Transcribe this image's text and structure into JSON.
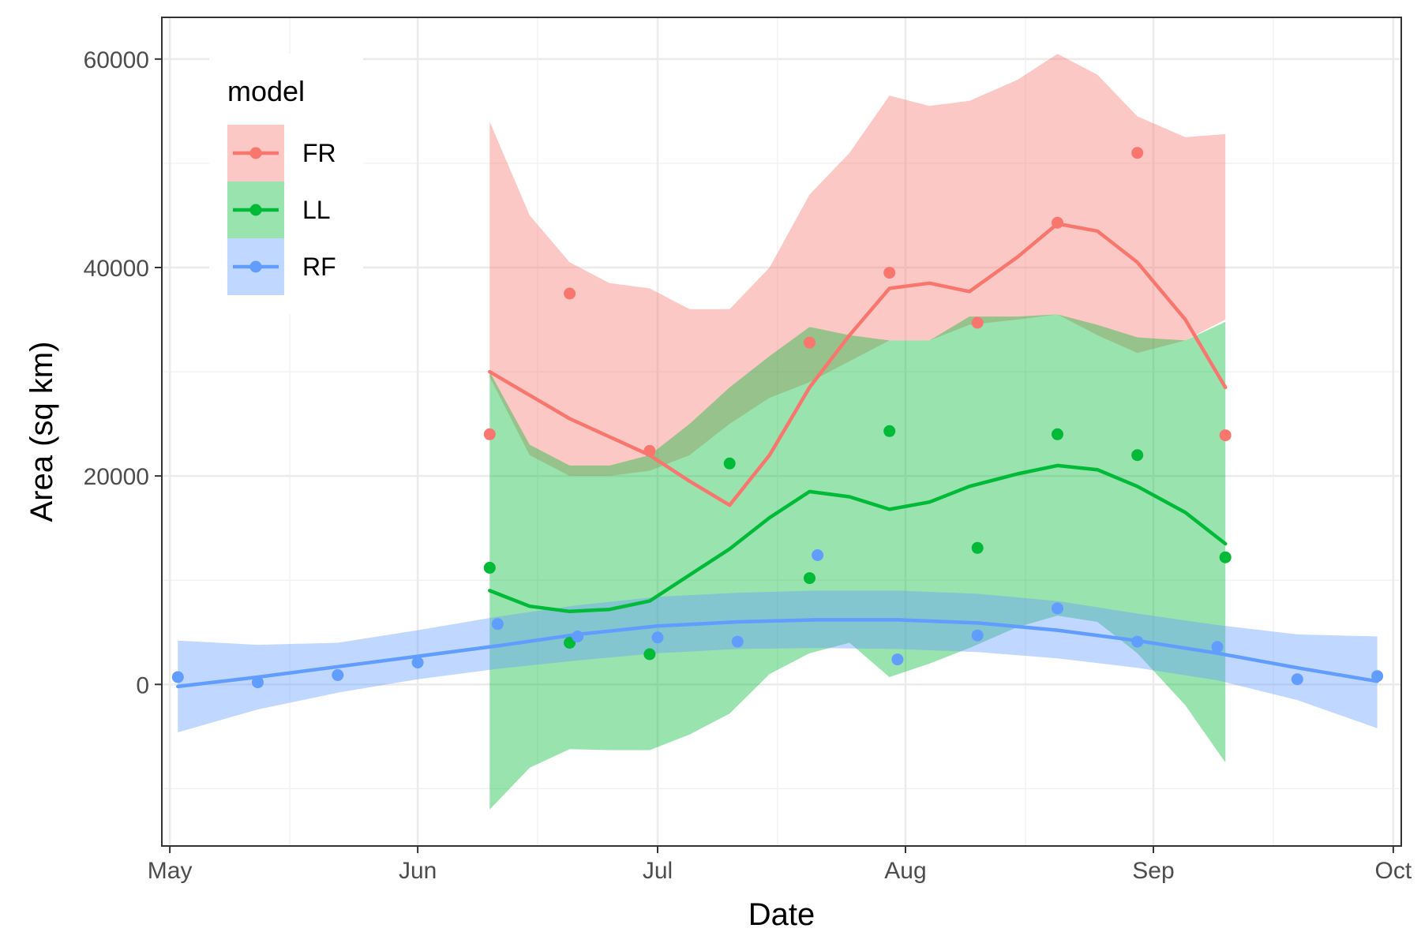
{
  "chart_data": {
    "type": "line",
    "xlabel": "Date",
    "ylabel": "Area (sq km)",
    "x_axis_type": "date",
    "xlim": [
      "2018-04-30",
      "2018-10-02"
    ],
    "ylim": [
      -15500,
      64000
    ],
    "x_ticks": [
      {
        "date": "2018-05-01",
        "label": "May"
      },
      {
        "date": "2018-06-01",
        "label": "Jun"
      },
      {
        "date": "2018-07-01",
        "label": "Jul"
      },
      {
        "date": "2018-08-01",
        "label": "Aug"
      },
      {
        "date": "2018-09-01",
        "label": "Sep"
      },
      {
        "date": "2018-10-01",
        "label": "Oct"
      }
    ],
    "x_minor_ticks": [
      "2018-05-16",
      "2018-06-16",
      "2018-07-16",
      "2018-08-16",
      "2018-09-16"
    ],
    "y_ticks": [
      0,
      20000,
      40000,
      60000
    ],
    "y_minor_ticks": [
      -10000,
      10000,
      30000,
      50000
    ],
    "grid": true,
    "legend": {
      "title": "model",
      "position": "top-left inside"
    },
    "series": [
      {
        "name": "FR",
        "color": "#F8766D",
        "points": [
          [
            "2018-06-10",
            24000
          ],
          [
            "2018-06-20",
            37500
          ],
          [
            "2018-06-30",
            22400
          ],
          [
            "2018-07-20",
            32800
          ],
          [
            "2018-07-30",
            39500
          ],
          [
            "2018-08-10",
            34700
          ],
          [
            "2018-08-20",
            44300
          ],
          [
            "2018-08-30",
            51000
          ],
          [
            "2018-09-10",
            23900
          ]
        ],
        "smooth": [
          [
            "2018-06-10",
            30000
          ],
          [
            "2018-06-20",
            25500
          ],
          [
            "2018-06-30",
            22000
          ],
          [
            "2018-07-05",
            19500
          ],
          [
            "2018-07-10",
            17200
          ],
          [
            "2018-07-15",
            22000
          ],
          [
            "2018-07-20",
            28500
          ],
          [
            "2018-07-25",
            33500
          ],
          [
            "2018-07-30",
            38000
          ],
          [
            "2018-08-04",
            38500
          ],
          [
            "2018-08-09",
            37700
          ],
          [
            "2018-08-15",
            41000
          ],
          [
            "2018-08-20",
            44200
          ],
          [
            "2018-08-25",
            43500
          ],
          [
            "2018-08-30",
            40500
          ],
          [
            "2018-09-05",
            35000
          ],
          [
            "2018-09-10",
            28500
          ]
        ],
        "ribbon_upper": [
          [
            "2018-06-10",
            54000
          ],
          [
            "2018-06-15",
            45000
          ],
          [
            "2018-06-20",
            40500
          ],
          [
            "2018-06-25",
            38500
          ],
          [
            "2018-06-30",
            38000
          ],
          [
            "2018-07-05",
            36000
          ],
          [
            "2018-07-10",
            36000
          ],
          [
            "2018-07-15",
            40000
          ],
          [
            "2018-07-20",
            47000
          ],
          [
            "2018-07-25",
            51000
          ],
          [
            "2018-07-30",
            56500
          ],
          [
            "2018-08-04",
            55500
          ],
          [
            "2018-08-09",
            56000
          ],
          [
            "2018-08-15",
            58000
          ],
          [
            "2018-08-20",
            60500
          ],
          [
            "2018-08-25",
            58500
          ],
          [
            "2018-08-30",
            54500
          ],
          [
            "2018-09-05",
            52500
          ],
          [
            "2018-09-10",
            52800
          ]
        ],
        "ribbon_lower": [
          [
            "2018-06-10",
            29500
          ],
          [
            "2018-06-15",
            22000
          ],
          [
            "2018-06-20",
            20000
          ],
          [
            "2018-06-25",
            20000
          ],
          [
            "2018-06-30",
            20500
          ],
          [
            "2018-07-05",
            22000
          ],
          [
            "2018-07-10",
            25000
          ],
          [
            "2018-07-15",
            27500
          ],
          [
            "2018-07-20",
            29000
          ],
          [
            "2018-07-25",
            31000
          ],
          [
            "2018-07-30",
            33000
          ],
          [
            "2018-08-04",
            33000
          ],
          [
            "2018-08-09",
            34500
          ],
          [
            "2018-08-15",
            35000
          ],
          [
            "2018-08-20",
            35500
          ],
          [
            "2018-08-25",
            33500
          ],
          [
            "2018-08-30",
            31800
          ],
          [
            "2018-09-05",
            33000
          ],
          [
            "2018-09-10",
            35000
          ]
        ]
      },
      {
        "name": "LL",
        "color": "#00BA38",
        "points": [
          [
            "2018-06-10",
            11200
          ],
          [
            "2018-06-20",
            4000
          ],
          [
            "2018-06-30",
            2900
          ],
          [
            "2018-07-10",
            21200
          ],
          [
            "2018-07-20",
            10200
          ],
          [
            "2018-07-30",
            24300
          ],
          [
            "2018-08-10",
            13100
          ],
          [
            "2018-08-20",
            24000
          ],
          [
            "2018-08-30",
            22000
          ],
          [
            "2018-09-10",
            12200
          ]
        ],
        "smooth": [
          [
            "2018-06-10",
            9000
          ],
          [
            "2018-06-15",
            7500
          ],
          [
            "2018-06-20",
            7000
          ],
          [
            "2018-06-25",
            7200
          ],
          [
            "2018-06-30",
            8000
          ],
          [
            "2018-07-05",
            10500
          ],
          [
            "2018-07-10",
            13000
          ],
          [
            "2018-07-15",
            16000
          ],
          [
            "2018-07-20",
            18500
          ],
          [
            "2018-07-25",
            18000
          ],
          [
            "2018-07-30",
            16800
          ],
          [
            "2018-08-04",
            17500
          ],
          [
            "2018-08-09",
            19000
          ],
          [
            "2018-08-15",
            20200
          ],
          [
            "2018-08-20",
            21000
          ],
          [
            "2018-08-25",
            20600
          ],
          [
            "2018-08-30",
            19000
          ],
          [
            "2018-09-05",
            16500
          ],
          [
            "2018-09-10",
            13500
          ]
        ],
        "ribbon_upper": [
          [
            "2018-06-10",
            30000
          ],
          [
            "2018-06-15",
            23000
          ],
          [
            "2018-06-20",
            21000
          ],
          [
            "2018-06-25",
            21000
          ],
          [
            "2018-06-30",
            22000
          ],
          [
            "2018-07-05",
            25000
          ],
          [
            "2018-07-10",
            28500
          ],
          [
            "2018-07-15",
            31500
          ],
          [
            "2018-07-20",
            34300
          ],
          [
            "2018-07-25",
            33500
          ],
          [
            "2018-07-30",
            33000
          ],
          [
            "2018-08-04",
            33000
          ],
          [
            "2018-08-09",
            35300
          ],
          [
            "2018-08-15",
            35300
          ],
          [
            "2018-08-20",
            35500
          ],
          [
            "2018-08-25",
            34500
          ],
          [
            "2018-08-30",
            33300
          ],
          [
            "2018-09-05",
            33000
          ],
          [
            "2018-09-10",
            34800
          ]
        ],
        "ribbon_lower": [
          [
            "2018-06-10",
            -12000
          ],
          [
            "2018-06-15",
            -8000
          ],
          [
            "2018-06-20",
            -6200
          ],
          [
            "2018-06-25",
            -6300
          ],
          [
            "2018-06-30",
            -6300
          ],
          [
            "2018-07-05",
            -4800
          ],
          [
            "2018-07-10",
            -2800
          ],
          [
            "2018-07-15",
            1000
          ],
          [
            "2018-07-20",
            3000
          ],
          [
            "2018-07-25",
            4000
          ],
          [
            "2018-07-30",
            700
          ],
          [
            "2018-08-04",
            2000
          ],
          [
            "2018-08-09",
            3500
          ],
          [
            "2018-08-15",
            5500
          ],
          [
            "2018-08-20",
            6600
          ],
          [
            "2018-08-25",
            6000
          ],
          [
            "2018-08-30",
            3000
          ],
          [
            "2018-09-05",
            -2000
          ],
          [
            "2018-09-10",
            -7500
          ]
        ]
      },
      {
        "name": "RF",
        "color": "#619CFF",
        "points": [
          [
            "2018-05-02",
            700
          ],
          [
            "2018-05-12",
            200
          ],
          [
            "2018-05-22",
            900
          ],
          [
            "2018-06-01",
            2100
          ],
          [
            "2018-06-11",
            5800
          ],
          [
            "2018-06-21",
            4600
          ],
          [
            "2018-07-01",
            4500
          ],
          [
            "2018-07-11",
            4100
          ],
          [
            "2018-07-21",
            12400
          ],
          [
            "2018-07-31",
            2400
          ],
          [
            "2018-08-10",
            4700
          ],
          [
            "2018-08-20",
            7300
          ],
          [
            "2018-08-30",
            4100
          ],
          [
            "2018-09-09",
            3600
          ],
          [
            "2018-09-19",
            500
          ],
          [
            "2018-09-29",
            800
          ]
        ],
        "smooth": [
          [
            "2018-05-02",
            -200
          ],
          [
            "2018-05-12",
            700
          ],
          [
            "2018-05-22",
            1700
          ],
          [
            "2018-06-01",
            2700
          ],
          [
            "2018-06-11",
            3700
          ],
          [
            "2018-06-21",
            4800
          ],
          [
            "2018-07-01",
            5600
          ],
          [
            "2018-07-11",
            6000
          ],
          [
            "2018-07-21",
            6200
          ],
          [
            "2018-07-31",
            6200
          ],
          [
            "2018-08-10",
            5900
          ],
          [
            "2018-08-20",
            5200
          ],
          [
            "2018-08-30",
            4200
          ],
          [
            "2018-09-09",
            3000
          ],
          [
            "2018-09-19",
            1600
          ],
          [
            "2018-09-29",
            300
          ]
        ],
        "ribbon_upper": [
          [
            "2018-05-02",
            4200
          ],
          [
            "2018-05-12",
            3800
          ],
          [
            "2018-05-22",
            4000
          ],
          [
            "2018-06-01",
            5200
          ],
          [
            "2018-06-11",
            6500
          ],
          [
            "2018-06-21",
            7600
          ],
          [
            "2018-07-01",
            8400
          ],
          [
            "2018-07-11",
            8800
          ],
          [
            "2018-07-21",
            9000
          ],
          [
            "2018-07-31",
            9000
          ],
          [
            "2018-08-10",
            8700
          ],
          [
            "2018-08-20",
            8000
          ],
          [
            "2018-08-30",
            6800
          ],
          [
            "2018-09-09",
            5700
          ],
          [
            "2018-09-19",
            4800
          ],
          [
            "2018-09-29",
            4600
          ]
        ],
        "ribbon_lower": [
          [
            "2018-05-02",
            -4600
          ],
          [
            "2018-05-12",
            -2400
          ],
          [
            "2018-05-22",
            -800
          ],
          [
            "2018-06-01",
            500
          ],
          [
            "2018-06-11",
            1500
          ],
          [
            "2018-06-21",
            2300
          ],
          [
            "2018-07-01",
            3000
          ],
          [
            "2018-07-11",
            3400
          ],
          [
            "2018-07-21",
            3500
          ],
          [
            "2018-07-31",
            3400
          ],
          [
            "2018-08-10",
            3100
          ],
          [
            "2018-08-20",
            2500
          ],
          [
            "2018-08-30",
            1600
          ],
          [
            "2018-09-09",
            400
          ],
          [
            "2018-09-19",
            -1500
          ],
          [
            "2018-09-29",
            -4200
          ]
        ]
      }
    ]
  }
}
